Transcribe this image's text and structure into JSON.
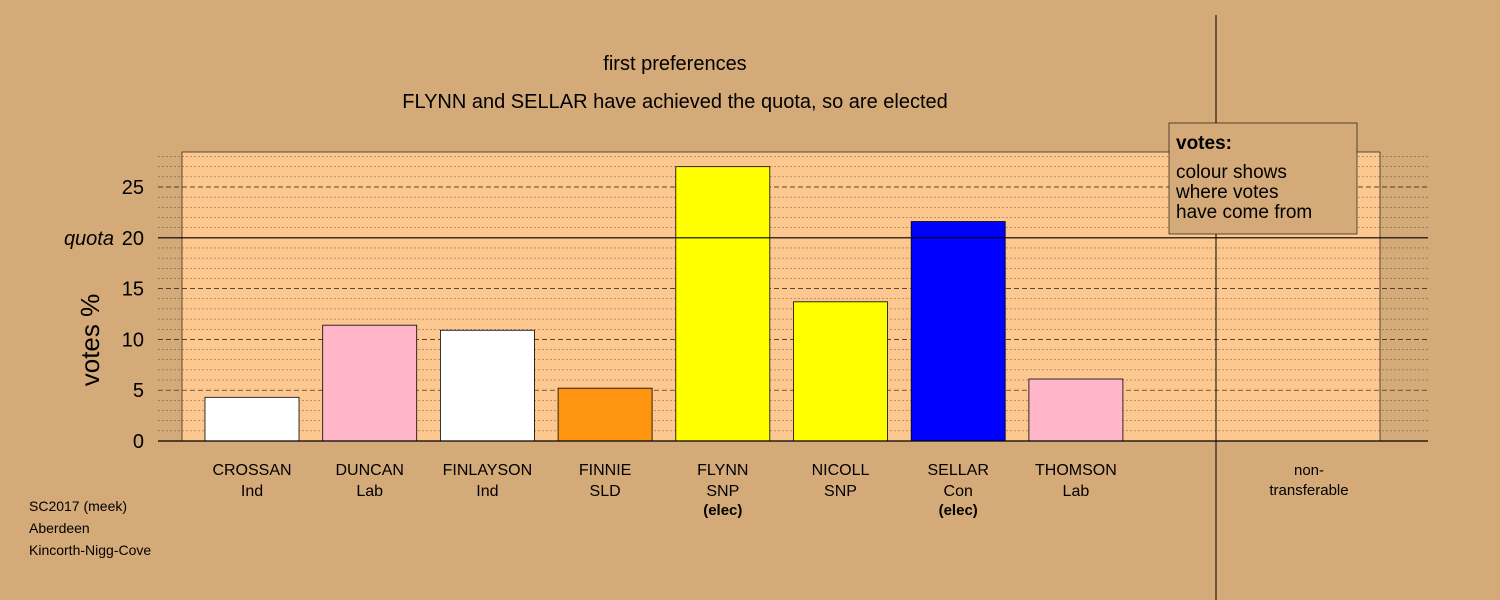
{
  "chart_data": {
    "type": "bar",
    "title": "first preferences",
    "subtitle": "FLYNN and SELLAR have achieved the quota, so are elected",
    "ylabel": "votes %",
    "ylim": [
      0,
      28.5
    ],
    "yticks": [
      0,
      5,
      10,
      15,
      20,
      25
    ],
    "quota": {
      "value": 20,
      "label": "quota"
    },
    "categories": [
      {
        "name": "CROSSAN",
        "party": "Ind",
        "value": 4.3,
        "color": "#ffffff",
        "elected": false
      },
      {
        "name": "DUNCAN",
        "party": "Lab",
        "value": 11.4,
        "color": "#ffb6c8",
        "elected": false
      },
      {
        "name": "FINLAYSON",
        "party": "Ind",
        "value": 10.9,
        "color": "#ffffff",
        "elected": false
      },
      {
        "name": "FINNIE",
        "party": "SLD",
        "value": 5.2,
        "color": "#ff9410",
        "elected": false
      },
      {
        "name": "FLYNN",
        "party": "SNP",
        "value": 27.0,
        "color": "#ffff00",
        "elected": true
      },
      {
        "name": "NICOLL",
        "party": "SNP",
        "value": 13.7,
        "color": "#ffff00",
        "elected": false
      },
      {
        "name": "SELLAR",
        "party": "Con",
        "value": 21.6,
        "color": "#0000ff",
        "elected": true
      },
      {
        "name": "THOMSON",
        "party": "Lab",
        "value": 6.1,
        "color": "#ffb6c8",
        "elected": false
      }
    ],
    "elected_label": "(elec)",
    "nontransferable": {
      "line1": "non-",
      "line2": "transferable",
      "value": 0
    },
    "legend": {
      "title": "votes:",
      "lines": [
        "colour shows",
        "where votes",
        "have come from"
      ],
      "placement": "top-right"
    },
    "grid": true
  },
  "footer": {
    "lines": [
      "SC2017 (meek)",
      "Aberdeen",
      "Kincorth-Nigg-Cove"
    ]
  },
  "colors": {
    "background": "#d4aa78",
    "plot_area": "#fcc890"
  }
}
